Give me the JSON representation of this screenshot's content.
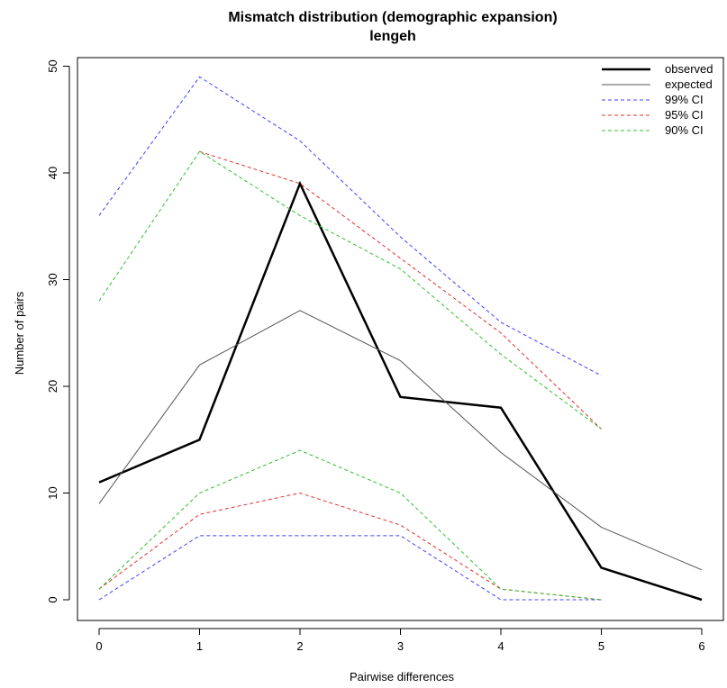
{
  "chart_data": {
    "type": "line",
    "title": "Mismatch distribution (demographic expansion)",
    "subtitle": "lengeh",
    "xlabel": "Pairwise differences",
    "ylabel": "Number of pairs",
    "xlim": [
      0,
      6
    ],
    "ylim": [
      0,
      50
    ],
    "x_ticks": [
      "0",
      "1",
      "2",
      "3",
      "4",
      "5",
      "6"
    ],
    "y_ticks": [
      "0",
      "10",
      "20",
      "30",
      "40",
      "50"
    ],
    "grid": false,
    "legend_position": "top-right",
    "series": [
      {
        "name": "observed",
        "color": "#000000",
        "dash": "solid",
        "width": "thick",
        "x": [
          0,
          1,
          2,
          3,
          4,
          5,
          6
        ],
        "y": [
          11,
          15,
          39,
          19,
          18,
          3,
          0
        ]
      },
      {
        "name": "expected",
        "color": "#555555",
        "dash": "solid",
        "width": "thin",
        "x": [
          0,
          1,
          2,
          3,
          4,
          5,
          6
        ],
        "y": [
          9,
          22,
          27.1,
          22.4,
          13.8,
          6.8,
          2.8
        ]
      },
      {
        "name": "99% CI",
        "color": "#4040ff",
        "dash": "dashed",
        "width": "thin",
        "band": "upper",
        "x": [
          0,
          1,
          2,
          3,
          4,
          5
        ],
        "y": [
          36,
          49,
          43,
          34,
          26,
          21
        ]
      },
      {
        "name": "99% CI",
        "color": "#4040ff",
        "dash": "dashed",
        "width": "thin",
        "band": "lower",
        "x": [
          0,
          1,
          2,
          3,
          4,
          5
        ],
        "y": [
          0,
          6,
          6,
          6,
          0,
          0
        ]
      },
      {
        "name": "95% CI",
        "color": "#e03030",
        "dash": "dashed",
        "width": "thin",
        "band": "upper",
        "x": [
          1,
          2,
          3,
          4,
          5
        ],
        "y": [
          42,
          39,
          32,
          25,
          16
        ]
      },
      {
        "name": "95% CI",
        "color": "#e03030",
        "dash": "dashed",
        "width": "thin",
        "band": "lower",
        "x": [
          0,
          1,
          2,
          3,
          4,
          5
        ],
        "y": [
          1,
          8,
          10,
          7,
          1,
          0
        ]
      },
      {
        "name": "90% CI",
        "color": "#30c030",
        "dash": "dashed",
        "width": "thin",
        "band": "upper",
        "x": [
          0,
          1,
          2,
          3,
          4,
          5
        ],
        "y": [
          28,
          42,
          36,
          31,
          23,
          16
        ]
      },
      {
        "name": "90% CI",
        "color": "#30c030",
        "dash": "dashed",
        "width": "thin",
        "band": "lower",
        "x": [
          0,
          1,
          2,
          3,
          4,
          5
        ],
        "y": [
          1,
          10,
          14,
          10,
          1,
          0
        ]
      }
    ],
    "legend": [
      {
        "label": "observed",
        "color": "#000000",
        "dash": "solid",
        "width": "thick"
      },
      {
        "label": "expected",
        "color": "#555555",
        "dash": "solid",
        "width": "thin"
      },
      {
        "label": "99% CI",
        "color": "#4040ff",
        "dash": "dashed",
        "width": "thin"
      },
      {
        "label": "95% CI",
        "color": "#e03030",
        "dash": "dashed",
        "width": "thin"
      },
      {
        "label": "90% CI",
        "color": "#30c030",
        "dash": "dashed",
        "width": "thin"
      }
    ]
  }
}
